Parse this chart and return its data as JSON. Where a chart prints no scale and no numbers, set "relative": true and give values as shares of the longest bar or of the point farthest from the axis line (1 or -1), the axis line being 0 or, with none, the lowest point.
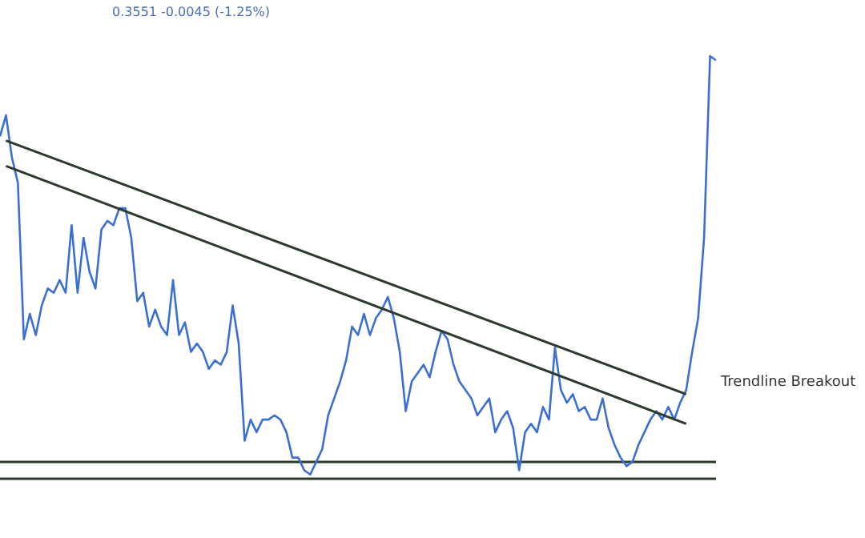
{
  "chart_data": {
    "type": "line",
    "relative": true,
    "annotations": [
      "0.3551 -0.0045 (-1.25%)",
      "Trendline Breakout"
    ],
    "categories": [
      null,
      null,
      null,
      null,
      null,
      null,
      null,
      null,
      null,
      null,
      null,
      null,
      null,
      null,
      null,
      null,
      null,
      null,
      null,
      null,
      null,
      null,
      null,
      null,
      null,
      null,
      null,
      null,
      null,
      null,
      null,
      null,
      null,
      null,
      null,
      null,
      null,
      null,
      null,
      null,
      null,
      null,
      null,
      null,
      null,
      null,
      null,
      null,
      null,
      null,
      null,
      null,
      null,
      null,
      null,
      null,
      null,
      null,
      null,
      null,
      null,
      null,
      null,
      null,
      null,
      null,
      null,
      null,
      null,
      null,
      null,
      null,
      null,
      null,
      null,
      null,
      null,
      null,
      null,
      null,
      null,
      null,
      null,
      null,
      null,
      null,
      null,
      null,
      null,
      null,
      null,
      null,
      null,
      null,
      null,
      null,
      null,
      null,
      null,
      null,
      null,
      null,
      null,
      null,
      null,
      null,
      null,
      null,
      null,
      null,
      null,
      null,
      null,
      null,
      null,
      null,
      null,
      null,
      null,
      null,
      null
    ],
    "series": [
      {
        "color": "#3b6fd4",
        "values": [
          0.81,
          0.86,
          0.76,
          0.7,
          0.33,
          0.39,
          0.34,
          0.41,
          0.45,
          0.44,
          0.47,
          0.44,
          0.6,
          0.44,
          0.57,
          0.49,
          0.45,
          0.59,
          0.61,
          0.6,
          0.64,
          0.64,
          0.57,
          0.42,
          0.44,
          0.36,
          0.4,
          0.36,
          0.34,
          0.47,
          0.34,
          0.37,
          0.3,
          0.32,
          0.3,
          0.26,
          0.28,
          0.27,
          0.3,
          0.41,
          0.32,
          0.09,
          0.14,
          0.11,
          0.14,
          0.14,
          0.15,
          0.14,
          0.11,
          0.05,
          0.05,
          0.02,
          0.01,
          0.04,
          0.07,
          0.15,
          0.19,
          0.23,
          0.28,
          0.36,
          0.34,
          0.39,
          0.34,
          0.38,
          0.4,
          0.43,
          0.38,
          0.3,
          0.16,
          0.23,
          0.25,
          0.27,
          0.24,
          0.3,
          0.35,
          0.33,
          0.27,
          0.23,
          0.21,
          0.19,
          0.15,
          0.17,
          0.19,
          0.11,
          0.14,
          0.16,
          0.12,
          0.02,
          0.11,
          0.13,
          0.11,
          0.17,
          0.14,
          0.31,
          0.21,
          0.18,
          0.2,
          0.16,
          0.17,
          0.14,
          0.14,
          0.19,
          0.12,
          0.08,
          0.05,
          0.03,
          0.04,
          0.08,
          0.11,
          0.14,
          0.16,
          0.14,
          0.17,
          0.14,
          0.18,
          0.21,
          0.3,
          0.38,
          0.57,
          1.0,
          0.99
        ]
      },
      {
        "type": "line",
        "color": "#2d3b2d",
        "values": [
          null,
          0.8,
          null,
          null,
          null,
          null,
          null,
          null,
          null,
          null,
          null,
          null,
          null,
          null,
          null,
          null,
          null,
          null,
          null,
          null,
          null,
          null,
          null,
          null,
          null,
          null,
          null,
          null,
          null,
          null,
          null,
          null,
          null,
          null,
          null,
          null,
          null,
          null,
          null,
          null,
          null,
          null,
          null,
          null,
          null,
          null,
          null,
          null,
          null,
          null,
          null,
          null,
          null,
          null,
          null,
          null,
          null,
          null,
          null,
          null,
          null,
          null,
          null,
          null,
          null,
          null,
          null,
          null,
          null,
          null,
          null,
          null,
          null,
          null,
          null,
          null,
          null,
          null,
          null,
          null,
          null,
          null,
          null,
          null,
          null,
          null,
          null,
          null,
          null,
          null,
          null,
          null,
          null,
          null,
          null,
          null,
          null,
          null,
          null,
          null,
          null,
          null,
          null,
          null,
          null,
          null,
          null,
          null,
          null,
          null,
          null,
          null,
          null,
          null,
          null,
          0.2,
          null,
          null,
          null,
          null,
          null
        ]
      },
      {
        "type": "line",
        "color": "#2d3b2d",
        "values": [
          null,
          0.74,
          null,
          null,
          null,
          null,
          null,
          null,
          null,
          null,
          null,
          null,
          null,
          null,
          null,
          null,
          null,
          null,
          null,
          null,
          null,
          null,
          null,
          null,
          null,
          null,
          null,
          null,
          null,
          null,
          null,
          null,
          null,
          null,
          null,
          null,
          null,
          null,
          null,
          null,
          null,
          null,
          null,
          null,
          null,
          null,
          null,
          null,
          null,
          null,
          null,
          null,
          null,
          null,
          null,
          null,
          null,
          null,
          null,
          null,
          null,
          null,
          null,
          null,
          null,
          null,
          null,
          null,
          null,
          null,
          null,
          null,
          null,
          null,
          null,
          null,
          null,
          null,
          null,
          null,
          null,
          null,
          null,
          null,
          null,
          null,
          null,
          null,
          null,
          null,
          null,
          null,
          null,
          null,
          null,
          null,
          null,
          null,
          null,
          null,
          null,
          null,
          null,
          null,
          null,
          null,
          null,
          null,
          null,
          null,
          null,
          null,
          null,
          null,
          null,
          0.13,
          null,
          null,
          null,
          null,
          null
        ]
      }
    ],
    "ref_lines": [
      {
        "axis": "y",
        "value": 0.04,
        "color": "#2d3b2d"
      },
      {
        "axis": "y",
        "value": 0.0,
        "color": "#2d3b2d"
      }
    ]
  }
}
